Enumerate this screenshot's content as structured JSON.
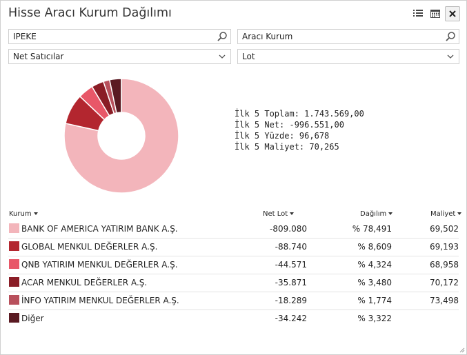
{
  "window": {
    "title": "Hisse Aracı Kurum Dağılımı",
    "icons": [
      "list-icon",
      "calendar-icon",
      "close-icon"
    ]
  },
  "filters": {
    "symbol": {
      "value": "IPEKE",
      "icon": "search-icon"
    },
    "broker": {
      "value": "Aracı Kurum",
      "icon": "search-icon"
    },
    "side": {
      "selected": "Net Satıcılar",
      "icon": "chevron-down-icon"
    },
    "unit": {
      "selected": "Lot",
      "icon": "chevron-down-icon"
    }
  },
  "summary": {
    "line1": "İlk 5 Toplam: 1.743.569,00",
    "line2": "İlk 5 Net: -996.551,00",
    "line3": "İlk 5 Yüzde: 96,678",
    "line4": "İlk 5 Maliyet: 70,265"
  },
  "table": {
    "headers": {
      "kurum": "Kurum",
      "net_lot": "Net Lot",
      "dagilim": "Dağılım",
      "maliyet": "Maliyet"
    },
    "rows": [
      {
        "name": "BANK OF AMERICA YATIRIM BANK A.Ş.",
        "net_lot": "-809.080",
        "dagilim": "% 78,491",
        "maliyet": "69,502",
        "color": "#f3b5bb"
      },
      {
        "name": "GLOBAL MENKUL DEĞERLER A.Ş.",
        "net_lot": "-88.740",
        "dagilim": "% 8,609",
        "maliyet": "69,193",
        "color": "#b3262f"
      },
      {
        "name": "QNB YATIRIM MENKUL DEĞERLER A.Ş.",
        "net_lot": "-44.571",
        "dagilim": "% 4,324",
        "maliyet": "68,958",
        "color": "#e85768"
      },
      {
        "name": "ACAR MENKUL DEĞERLER A.Ş.",
        "net_lot": "-35.871",
        "dagilim": "% 3,480",
        "maliyet": "70,172",
        "color": "#8a1d26"
      },
      {
        "name": "İNFO YATIRIM MENKUL DEĞERLER A.Ş.",
        "net_lot": "-18.289",
        "dagilim": "% 1,774",
        "maliyet": "73,498",
        "color": "#b8505c"
      },
      {
        "name": "Diğer",
        "net_lot": "-34.242",
        "dagilim": "% 3,322",
        "maliyet": "",
        "color": "#5a1a22"
      }
    ]
  },
  "chart_data": {
    "type": "pie",
    "donut": true,
    "categories": [
      "BANK OF AMERICA YATIRIM BANK A.Ş.",
      "GLOBAL MENKUL DEĞERLER A.Ş.",
      "QNB YATIRIM MENKUL DEĞERLER A.Ş.",
      "ACAR MENKUL DEĞERLER A.Ş.",
      "İNFO YATIRIM MENKUL DEĞERLER A.Ş.",
      "Diğer"
    ],
    "values": [
      78.491,
      8.609,
      4.324,
      3.48,
      1.774,
      3.322
    ],
    "colors": [
      "#f3b5bb",
      "#b3262f",
      "#e85768",
      "#8a1d26",
      "#b8505c",
      "#5a1a22"
    ]
  }
}
